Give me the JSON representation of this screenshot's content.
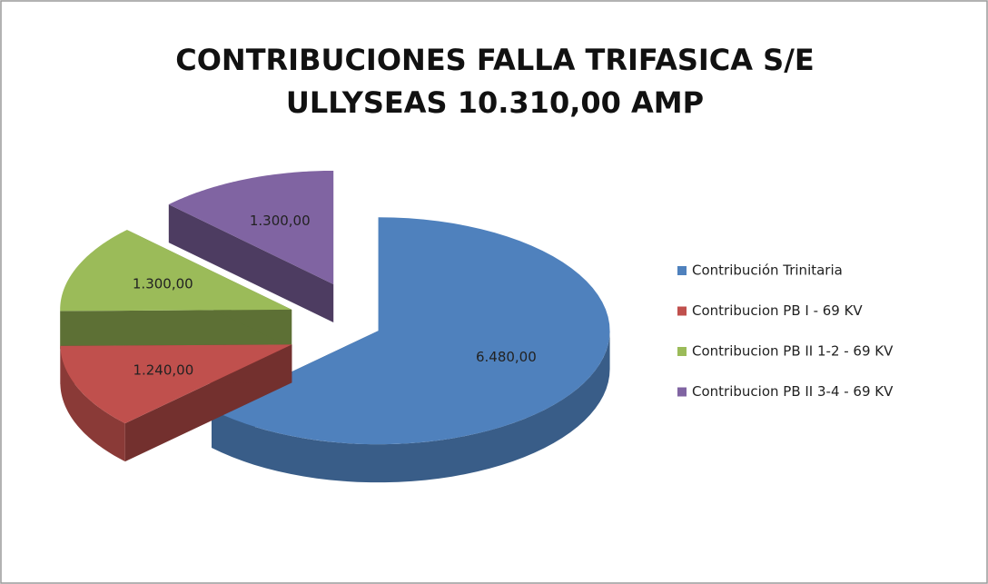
{
  "chart_data": {
    "type": "pie3d",
    "title": [
      "CONTRIBUCIONES FALLA TRIFASICA S/E",
      "ULLYSEAS   10.310,00 AMP"
    ],
    "categories": [
      "Contribución Trinitaria",
      "Contribucion PB I - 69 KV",
      "Contribucion PB II 1-2 - 69 KV",
      "Contribucion PB II 3-4 - 69 KV"
    ],
    "values": [
      6480,
      1240,
      1300,
      1300
    ],
    "value_labels": [
      "6.480,00",
      "1.240,00",
      "1.300,00",
      "1.300,00"
    ],
    "colors": [
      "#4f81bd",
      "#c0504d",
      "#9bbb59",
      "#8064a2"
    ],
    "legend": "right"
  }
}
